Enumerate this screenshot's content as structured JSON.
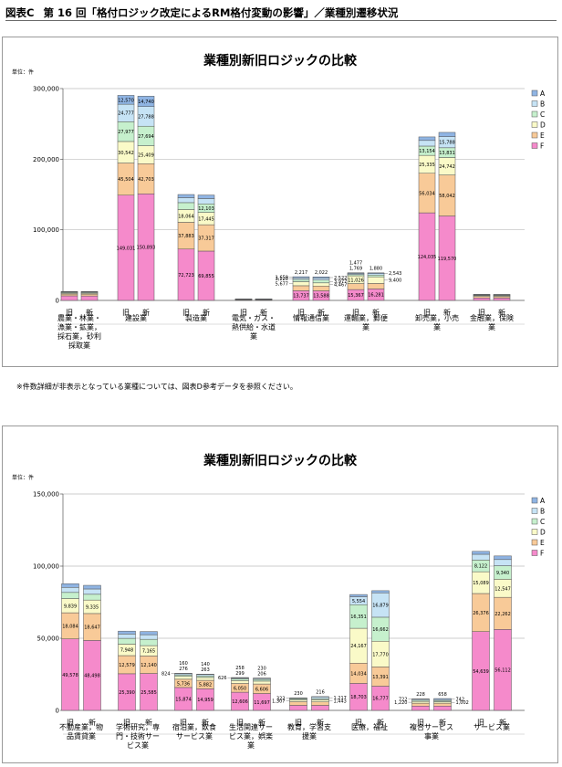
{
  "header": {
    "prefix": "図表C",
    "title": "第 16 回「格付ロジック改定によるRM格付変動の影響」／業種別遷移状況"
  },
  "note": "※件数詳細が非表示となっている業種については、図表D参考データを参照ください。",
  "legend_labels": [
    "A",
    "B",
    "C",
    "D",
    "E",
    "F"
  ],
  "grade_colors": {
    "A": "#8fb4e3",
    "B": "#c6e3f5",
    "C": "#c6f0cd",
    "D": "#fafac8",
    "E": "#f8ca98",
    "F": "#f58acb"
  },
  "chart_data": [
    {
      "type": "bar",
      "stacked": true,
      "title": "業種別新旧ロジックの比較",
      "unit_label": "単位：件",
      "ylim": [
        0,
        300000
      ],
      "yticks": [
        0,
        100000,
        200000,
        300000
      ],
      "ytick_labels": [
        "0",
        "100,000",
        "200,000",
        "300,000"
      ],
      "legend_position": "right",
      "series_order": [
        "F",
        "E",
        "D",
        "C",
        "B",
        "A"
      ],
      "groups": [
        {
          "label": "農業・林業・漁業・鉱業，採石業，砂利採取業",
          "bars": [
            {
              "label": "旧",
              "values": {
                "F": 6500,
                "E": 2500,
                "D": 1300,
                "C": 1000,
                "B": 800,
                "A": 600
              },
              "labels": {}
            },
            {
              "label": "新",
              "values": {
                "F": 6300,
                "E": 2600,
                "D": 1300,
                "C": 1000,
                "B": 800,
                "A": 600
              },
              "labels": {}
            }
          ]
        },
        {
          "label": "建設業",
          "bars": [
            {
              "label": "旧",
              "values": {
                "F": 149031,
                "E": 45504,
                "D": 30542,
                "C": 27977,
                "B": 24777,
                "A": 12570
              },
              "labels": {
                "F": "149,031",
                "E": "45,504",
                "D": "30,542",
                "C": "27,977",
                "B": "24,777",
                "A": "12,570"
              }
            },
            {
              "label": "新",
              "values": {
                "F": 150893,
                "E": 42703,
                "D": 25409,
                "C": 27694,
                "B": 27788,
                "A": 14740
              },
              "labels": {
                "F": "150,893",
                "E": "42,703",
                "D": "25,409",
                "C": "27,694",
                "B": "27,788",
                "A": "14,740"
              }
            }
          ]
        },
        {
          "label": "製造業",
          "bars": [
            {
              "label": "旧",
              "values": {
                "F": 72723,
                "E": 37883,
                "D": 18064,
                "C": 9800,
                "B": 7000,
                "A": 4500
              },
              "labels": {
                "F": "72,723",
                "E": "37,883",
                "D": "18,064"
              }
            },
            {
              "label": "新",
              "values": {
                "F": 69855,
                "E": 37317,
                "D": 17445,
                "C": 12103,
                "B": 7500,
                "A": 5000
              },
              "labels": {
                "F": "69,855",
                "E": "37,317",
                "D": "17,445",
                "C": "12,103"
              }
            }
          ]
        },
        {
          "label": "電気・ガス・熱供給・水道業",
          "bars": [
            {
              "label": "旧",
              "values": {
                "F": 700,
                "E": 450,
                "D": 300,
                "C": 250,
                "B": 200,
                "A": 150
              },
              "labels": {}
            },
            {
              "label": "新",
              "values": {
                "F": 720,
                "E": 460,
                "D": 300,
                "C": 250,
                "B": 200,
                "A": 150
              },
              "labels": {}
            }
          ]
        },
        {
          "label": "情報通信業",
          "bars": [
            {
              "label": "旧",
              "values": {
                "F": 13737,
                "E": 7052,
                "D": 5677,
                "C": 3220,
                "B": 2217,
                "A": 1659
              },
              "labels": {
                "F": "13,737",
                "E": "7,052"
              },
              "ext": [
                {
                  "s": "A",
                  "t": "1,659"
                },
                {
                  "s": "B",
                  "t": "3,220"
                },
                {
                  "s": "D",
                  "t": "5,677"
                },
                {
                  "s": "top",
                  "t": "2,217"
                }
              ]
            },
            {
              "label": "新",
              "values": {
                "F": 13588,
                "E": 6779,
                "D": 4467,
                "C": 3977,
                "B": 2522,
                "A": 2022
              },
              "labels": {
                "F": "13,588",
                "E": "6,779"
              },
              "ext": [
                {
                  "s": "top",
                  "t": "2,022"
                },
                {
                  "s": "A",
                  "t": "2,522"
                },
                {
                  "s": "C",
                  "t": "3,977"
                },
                {
                  "s": "D",
                  "t": "4,467"
                }
              ]
            }
          ]
        },
        {
          "label": "運輸業，郵便業",
          "bars": [
            {
              "label": "旧",
              "values": {
                "F": 15367,
                "E": 8500,
                "D": 11026,
                "C": 1769,
                "B": 1477,
                "A": 1000
              },
              "labels": {
                "F": "15,367",
                "D": "11,026"
              },
              "ext": [
                {
                  "s": "top",
                  "t": "1,769"
                },
                {
                  "s": "top2",
                  "t": "1,477"
                }
              ]
            },
            {
              "label": "新",
              "values": {
                "F": 16281,
                "E": 7725,
                "D": 9400,
                "C": 2543,
                "B": 1880,
                "A": 1200
              },
              "labels": {
                "F": "16,281",
                "E": "7,725"
              },
              "ext": [
                {
                  "s": "top",
                  "t": "1,880"
                },
                {
                  "s": "A",
                  "t": "2,543"
                },
                {
                  "s": "D",
                  "t": "9,400"
                }
              ]
            }
          ]
        },
        {
          "label": "卸売業，小売業",
          "bars": [
            {
              "label": "旧",
              "values": {
                "F": 124035,
                "E": 56034,
                "D": 25335,
                "C": 13154,
                "B": 8000,
                "A": 5000
              },
              "labels": {
                "F": "124,035",
                "E": "56,034",
                "D": "25,335",
                "C": "13,154"
              }
            },
            {
              "label": "新",
              "values": {
                "F": 119570,
                "E": 58042,
                "D": 24742,
                "C": 13831,
                "B": 15788,
                "A": 6000
              },
              "labels": {
                "F": "119,570",
                "E": "58,042",
                "D": "24,742",
                "C": "13,831",
                "B": "15,788"
              }
            }
          ]
        },
        {
          "label": "金融業，保険業",
          "bars": [
            {
              "label": "旧",
              "values": {
                "F": 3500,
                "E": 2000,
                "D": 1200,
                "C": 900,
                "B": 600,
                "A": 400
              },
              "labels": {}
            },
            {
              "label": "新",
              "values": {
                "F": 3400,
                "E": 2000,
                "D": 1200,
                "C": 900,
                "B": 600,
                "A": 400
              },
              "labels": {}
            }
          ]
        }
      ]
    },
    {
      "type": "bar",
      "stacked": true,
      "title": "業種別新旧ロジックの比較",
      "unit_label": "単位：件",
      "ylim": [
        0,
        150000
      ],
      "yticks": [
        0,
        50000,
        100000,
        150000
      ],
      "ytick_labels": [
        "0",
        "50,000",
        "100,000",
        "150,000"
      ],
      "legend_position": "right",
      "series_order": [
        "F",
        "E",
        "D",
        "C",
        "B",
        "A"
      ],
      "groups": [
        {
          "label": "不動産業，物品賃貸業",
          "bars": [
            {
              "label": "旧",
              "values": {
                "F": 49578,
                "E": 18084,
                "D": 9839,
                "C": 4259,
                "B": 3500,
                "A": 2500
              },
              "labels": {
                "F": "49,578",
                "E": "18,084",
                "D": "9,839",
                "C": "4,259"
              }
            },
            {
              "label": "新",
              "values": {
                "F": 48498,
                "E": 18647,
                "D": 9335,
                "C": 4005,
                "B": 3700,
                "A": 2500
              },
              "labels": {
                "F": "48,498",
                "E": "18,647",
                "D": "9,335",
                "C": "4,005"
              }
            }
          ]
        },
        {
          "label": "学術研究，専門・技術サービス業",
          "bars": [
            {
              "label": "旧",
              "values": {
                "F": 25390,
                "E": 12579,
                "D": 7948,
                "C": 4022,
                "B": 3000,
                "A": 2000
              },
              "labels": {
                "F": "25,390",
                "E": "12,579",
                "D": "7,948",
                "C": "4,022"
              }
            },
            {
              "label": "新",
              "values": {
                "F": 25585,
                "E": 12140,
                "D": 7165,
                "C": 4367,
                "B": 3200,
                "A": 2200
              },
              "labels": {
                "F": "25,585",
                "E": "12,140",
                "D": "7,165",
                "C": "4,367"
              }
            }
          ]
        },
        {
          "label": "宿泊業，飲食サービス業",
          "bars": [
            {
              "label": "旧",
              "values": {
                "F": 15874,
                "E": 5736,
                "D": 2000,
                "C": 1000,
                "B": 824,
                "A": 276
              },
              "labels": {
                "F": "15,874",
                "E": "5,736"
              },
              "ext": [
                {
                  "s": "top",
                  "t": "276"
                },
                {
                  "s": "A",
                  "t": "824"
                },
                {
                  "s": "top2",
                  "t": "160"
                }
              ]
            },
            {
              "label": "新",
              "values": {
                "F": 14959,
                "E": 5882,
                "D": 2000,
                "C": 1100,
                "B": 900,
                "A": 263
              },
              "labels": {
                "F": "14,959",
                "E": "5,882"
              },
              "ext": [
                {
                  "s": "top",
                  "t": "263"
                },
                {
                  "s": "top2",
                  "t": "140"
                }
              ]
            }
          ]
        },
        {
          "label": "生活関連サービス業，娯楽業",
          "bars": [
            {
              "label": "旧",
              "values": {
                "F": 12606,
                "E": 6050,
                "D": 2000,
                "C": 1200,
                "B": 626,
                "A": 299
              },
              "labels": {
                "F": "12,606",
                "E": "6,050"
              },
              "ext": [
                {
                  "s": "top",
                  "t": "299"
                },
                {
                  "s": "A",
                  "t": "626"
                },
                {
                  "s": "top2",
                  "t": "258"
                }
              ]
            },
            {
              "label": "新",
              "values": {
                "F": 11697,
                "E": 6606,
                "D": 2000,
                "C": 1200,
                "B": 700,
                "A": 206
              },
              "labels": {
                "F": "11,697",
                "E": "6,606"
              },
              "ext": [
                {
                  "s": "top",
                  "t": "206"
                },
                {
                  "s": "top2",
                  "t": "230"
                }
              ]
            }
          ]
        },
        {
          "label": "教育，学習支援業",
          "bars": [
            {
              "label": "旧",
              "values": {
                "F": 3500,
                "E": 2500,
                "D": 1307,
                "C": 800,
                "B": 322,
                "A": 230
              },
              "labels": {},
              "ext": [
                {
                  "s": "top",
                  "t": "230"
                },
                {
                  "s": "A",
                  "t": "322"
                },
                {
                  "s": "D",
                  "t": "1,307"
                }
              ]
            },
            {
              "label": "新",
              "values": {
                "F": 3500,
                "E": 2400,
                "D": 1443,
                "C": 800,
                "B": 1217,
                "A": 216
              },
              "labels": {},
              "ext": [
                {
                  "s": "top",
                  "t": "216"
                },
                {
                  "s": "B",
                  "t": "1,217"
                },
                {
                  "s": "D",
                  "t": "1,443"
                }
              ]
            }
          ]
        },
        {
          "label": "医療，福祉",
          "bars": [
            {
              "label": "旧",
              "values": {
                "F": 18703,
                "E": 14034,
                "D": 24167,
                "C": 16351,
                "B": 5554,
                "A": 1500
              },
              "labels": {
                "F": "18,703",
                "E": "14,034",
                "D": "24,167",
                "C": "16,351",
                "B": "5,554"
              }
            },
            {
              "label": "新",
              "values": {
                "F": 16777,
                "E": 13391,
                "D": 17770,
                "C": 16662,
                "B": 16879,
                "A": 1500
              },
              "labels": {
                "F": "16,777",
                "E": "13,391",
                "D": "17,770",
                "C": "16,662",
                "B": "16,879"
              }
            }
          ]
        },
        {
          "label": "複合サービス事業",
          "bars": [
            {
              "label": "旧",
              "values": {
                "F": 3000,
                "E": 2000,
                "D": 1220,
                "C": 800,
                "B": 722,
                "A": 228
              },
              "labels": {},
              "ext": [
                {
                  "s": "top",
                  "t": "228"
                },
                {
                  "s": "A",
                  "t": "722"
                },
                {
                  "s": "D",
                  "t": "1,220"
                }
              ]
            },
            {
              "label": "新",
              "values": {
                "F": 3000,
                "E": 2000,
                "D": 1002,
                "C": 800,
                "B": 742,
                "A": 658
              },
              "labels": {},
              "ext": [
                {
                  "s": "top",
                  "t": "658"
                },
                {
                  "s": "A",
                  "t": "742"
                },
                {
                  "s": "D",
                  "t": "1,002"
                }
              ]
            }
          ]
        },
        {
          "label": "サービス業",
          "bars": [
            {
              "label": "旧",
              "values": {
                "F": 54639,
                "E": 26376,
                "D": 15089,
                "C": 8122,
                "B": 4000,
                "A": 2000
              },
              "labels": {
                "F": "54,639",
                "E": "26,376",
                "D": "15,089",
                "C": "8,122"
              }
            },
            {
              "label": "新",
              "values": {
                "F": 56112,
                "E": 22262,
                "D": 12547,
                "C": 9340,
                "B": 4301,
                "A": 2500
              },
              "labels": {
                "F": "56,112",
                "E": "22,262",
                "D": "12,547",
                "C": "9,340",
                "B": "4,301"
              }
            }
          ]
        }
      ]
    }
  ]
}
